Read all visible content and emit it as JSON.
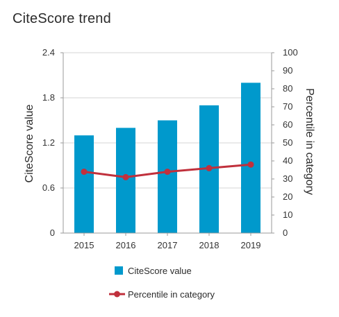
{
  "page_title": "CiteScore trend",
  "chart_data": {
    "type": "bar",
    "categories": [
      "2015",
      "2016",
      "2017",
      "2018",
      "2019"
    ],
    "series": [
      {
        "name": "CiteScore value",
        "type": "bar",
        "axis": "left",
        "values": [
          1.3,
          1.4,
          1.5,
          1.7,
          2.0
        ]
      },
      {
        "name": "Percentile in category",
        "type": "line",
        "axis": "right",
        "values": [
          34,
          31,
          34,
          36,
          38
        ]
      }
    ],
    "ylabel": "CiteScore value",
    "y2label": "Percentile in category",
    "ylim": [
      0,
      2.4
    ],
    "y2lim": [
      0,
      100
    ],
    "yticks": [
      "0",
      "0.6",
      "1.2",
      "1.8",
      "2.4"
    ],
    "y2ticks": [
      "0",
      "10",
      "20",
      "30",
      "40",
      "50",
      "60",
      "70",
      "80",
      "90",
      "100"
    ],
    "legend_position": "bottom",
    "grid": "horizontal",
    "colors": {
      "bar": "#0099cc",
      "line": "#c0303c",
      "grid": "#d6d6d6",
      "axis": "#9a9a9a"
    }
  }
}
